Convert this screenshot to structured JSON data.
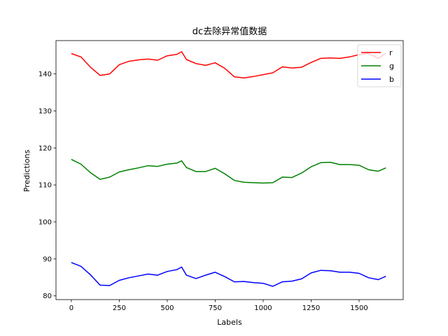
{
  "chart_data": {
    "type": "line",
    "title": "dc去除异常值数据",
    "xlabel": "Labels",
    "ylabel": "Predictions",
    "xlim": [
      -80,
      1730
    ],
    "ylim": [
      79,
      149
    ],
    "xticks": [
      0,
      250,
      500,
      750,
      1000,
      1250,
      1500
    ],
    "yticks": [
      80,
      90,
      100,
      110,
      120,
      130,
      140
    ],
    "grid": false,
    "legend": {
      "placement": "top-right"
    },
    "series": [
      {
        "name": "r",
        "color": "#ff0000",
        "x": [
          0,
          50,
          100,
          150,
          200,
          250,
          300,
          350,
          400,
          450,
          500,
          550,
          575,
          600,
          650,
          700,
          750,
          800,
          850,
          900,
          950,
          1000,
          1050,
          1100,
          1150,
          1200,
          1250,
          1300,
          1350,
          1400,
          1450,
          1500,
          1550,
          1600,
          1640
        ],
        "y": [
          145.5,
          144.6,
          141.8,
          139.6,
          140.0,
          142.5,
          143.4,
          143.8,
          144.0,
          143.7,
          144.9,
          145.3,
          146.0,
          143.9,
          142.8,
          142.3,
          143.0,
          141.5,
          139.2,
          138.9,
          139.3,
          139.8,
          140.3,
          141.9,
          141.6,
          141.8,
          143.1,
          144.2,
          144.3,
          144.2,
          144.6,
          145.2,
          145.5,
          144.2,
          145.6
        ]
      },
      {
        "name": "g",
        "color": "#008000",
        "x": [
          0,
          50,
          100,
          150,
          200,
          250,
          300,
          350,
          400,
          450,
          500,
          550,
          575,
          600,
          650,
          700,
          750,
          800,
          850,
          900,
          950,
          1000,
          1050,
          1100,
          1150,
          1200,
          1250,
          1300,
          1350,
          1400,
          1450,
          1500,
          1550,
          1600,
          1640
        ],
        "y": [
          116.9,
          115.6,
          113.3,
          111.5,
          112.1,
          113.5,
          114.1,
          114.6,
          115.2,
          115.0,
          115.6,
          115.9,
          116.5,
          114.7,
          113.6,
          113.6,
          114.5,
          113.0,
          111.2,
          110.7,
          110.6,
          110.5,
          110.6,
          112.1,
          112.0,
          113.2,
          114.9,
          116.0,
          116.1,
          115.5,
          115.5,
          115.3,
          114.1,
          113.7,
          114.6
        ]
      },
      {
        "name": "b",
        "color": "#0000ff",
        "x": [
          0,
          50,
          100,
          150,
          200,
          250,
          300,
          350,
          400,
          450,
          500,
          550,
          575,
          600,
          650,
          700,
          750,
          800,
          850,
          900,
          950,
          1000,
          1050,
          1100,
          1150,
          1200,
          1250,
          1300,
          1350,
          1400,
          1450,
          1500,
          1550,
          1600,
          1640
        ],
        "y": [
          89.0,
          88.0,
          85.7,
          82.9,
          82.8,
          84.2,
          84.9,
          85.4,
          85.9,
          85.6,
          86.6,
          87.1,
          87.8,
          85.6,
          84.7,
          85.6,
          86.4,
          85.2,
          83.8,
          83.9,
          83.6,
          83.4,
          82.6,
          83.8,
          84.0,
          84.6,
          86.2,
          86.9,
          86.8,
          86.4,
          86.4,
          86.1,
          84.9,
          84.4,
          85.3
        ]
      }
    ]
  }
}
